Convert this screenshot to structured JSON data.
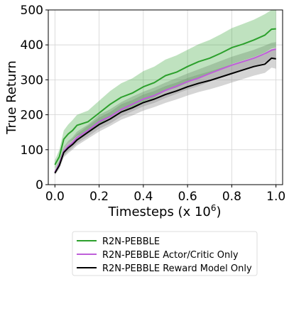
{
  "chart_data": {
    "type": "line",
    "xlabel": "Timesteps (x 10",
    "xlabel_exp": "6",
    "xlabel_close": ")",
    "ylabel": "True Return",
    "xlim": [
      -0.03,
      1.03
    ],
    "ylim": [
      0,
      500
    ],
    "xticks": [
      "0.0",
      "0.2",
      "0.4",
      "0.6",
      "0.8",
      "1.0"
    ],
    "yticks": [
      "0",
      "100",
      "200",
      "300",
      "400",
      "500"
    ],
    "grid": true,
    "legend_position": "below",
    "x": [
      0.0,
      0.02,
      0.04,
      0.06,
      0.08,
      0.1,
      0.15,
      0.2,
      0.25,
      0.3,
      0.35,
      0.4,
      0.45,
      0.5,
      0.55,
      0.6,
      0.65,
      0.7,
      0.75,
      0.8,
      0.85,
      0.9,
      0.95,
      0.98,
      1.0
    ],
    "series": [
      {
        "name": "R2N-PEBBLE",
        "color": "#2ca02c",
        "band_color": "#2ca02c",
        "values": [
          57,
          80,
          130,
          145,
          155,
          170,
          180,
          205,
          230,
          250,
          262,
          280,
          292,
          312,
          322,
          338,
          352,
          362,
          376,
          392,
          402,
          414,
          428,
          445,
          446
        ],
        "lower": [
          45,
          62,
          105,
          120,
          128,
          140,
          150,
          172,
          195,
          212,
          222,
          238,
          250,
          268,
          278,
          292,
          306,
          316,
          330,
          345,
          355,
          365,
          378,
          390,
          392
        ],
        "upper": [
          70,
          100,
          155,
          172,
          185,
          200,
          212,
          240,
          268,
          290,
          304,
          325,
          338,
          358,
          370,
          386,
          402,
          414,
          430,
          448,
          460,
          472,
          488,
          500,
          500
        ]
      },
      {
        "name": "R2N-PEBBLE Actor/Critic Only",
        "color": "#bf5fd9",
        "band_color": "#888888",
        "values": [
          35,
          60,
          95,
          110,
          120,
          135,
          155,
          180,
          195,
          215,
          230,
          245,
          255,
          270,
          282,
          295,
          305,
          318,
          330,
          342,
          352,
          362,
          375,
          385,
          388
        ],
        "lower": [
          30,
          50,
          82,
          95,
          105,
          118,
          138,
          160,
          175,
          195,
          210,
          224,
          234,
          248,
          260,
          272,
          282,
          295,
          306,
          318,
          328,
          338,
          350,
          360,
          362
        ],
        "upper": [
          42,
          70,
          108,
          125,
          136,
          152,
          172,
          200,
          216,
          236,
          252,
          266,
          278,
          292,
          305,
          318,
          330,
          342,
          354,
          366,
          376,
          386,
          398,
          406,
          408
        ]
      },
      {
        "name": "R2N-PEBBLE Reward Model Only",
        "color": "#000000",
        "band_color": "#888888",
        "values": [
          33,
          55,
          92,
          105,
          115,
          128,
          150,
          172,
          188,
          208,
          220,
          235,
          245,
          258,
          268,
          280,
          290,
          298,
          308,
          318,
          328,
          338,
          345,
          362,
          360
        ],
        "lower": [
          28,
          45,
          78,
          90,
          100,
          112,
          132,
          152,
          168,
          186,
          198,
          212,
          222,
          234,
          244,
          255,
          265,
          273,
          282,
          292,
          302,
          312,
          320,
          335,
          332
        ],
        "upper": [
          40,
          66,
          106,
          120,
          131,
          145,
          168,
          192,
          208,
          230,
          242,
          258,
          268,
          282,
          292,
          305,
          315,
          324,
          334,
          344,
          354,
          364,
          372,
          388,
          386
        ]
      }
    ]
  }
}
